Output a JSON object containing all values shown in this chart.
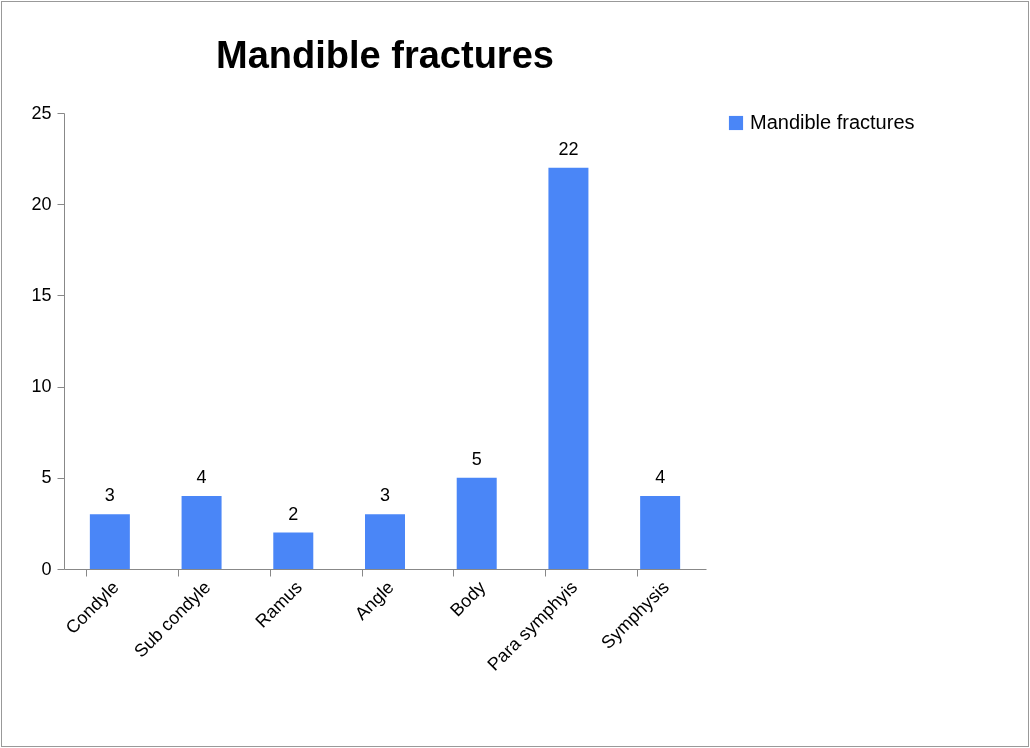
{
  "chart_data": {
    "type": "bar",
    "title": "Mandible fractures",
    "categories": [
      "Condyle",
      "Sub condyle",
      "Ramus",
      "Angle",
      "Body",
      "Para symphyis",
      "Symphysis"
    ],
    "series": [
      {
        "name": "Mandible fractures",
        "color": "#4a86f7",
        "values": [
          3,
          4,
          2,
          3,
          5,
          22,
          4
        ]
      }
    ],
    "ylim": [
      0,
      25
    ],
    "yticks": [
      0,
      5,
      10,
      15,
      20,
      25
    ],
    "grid": false,
    "legend": "right",
    "data_labels": true
  }
}
